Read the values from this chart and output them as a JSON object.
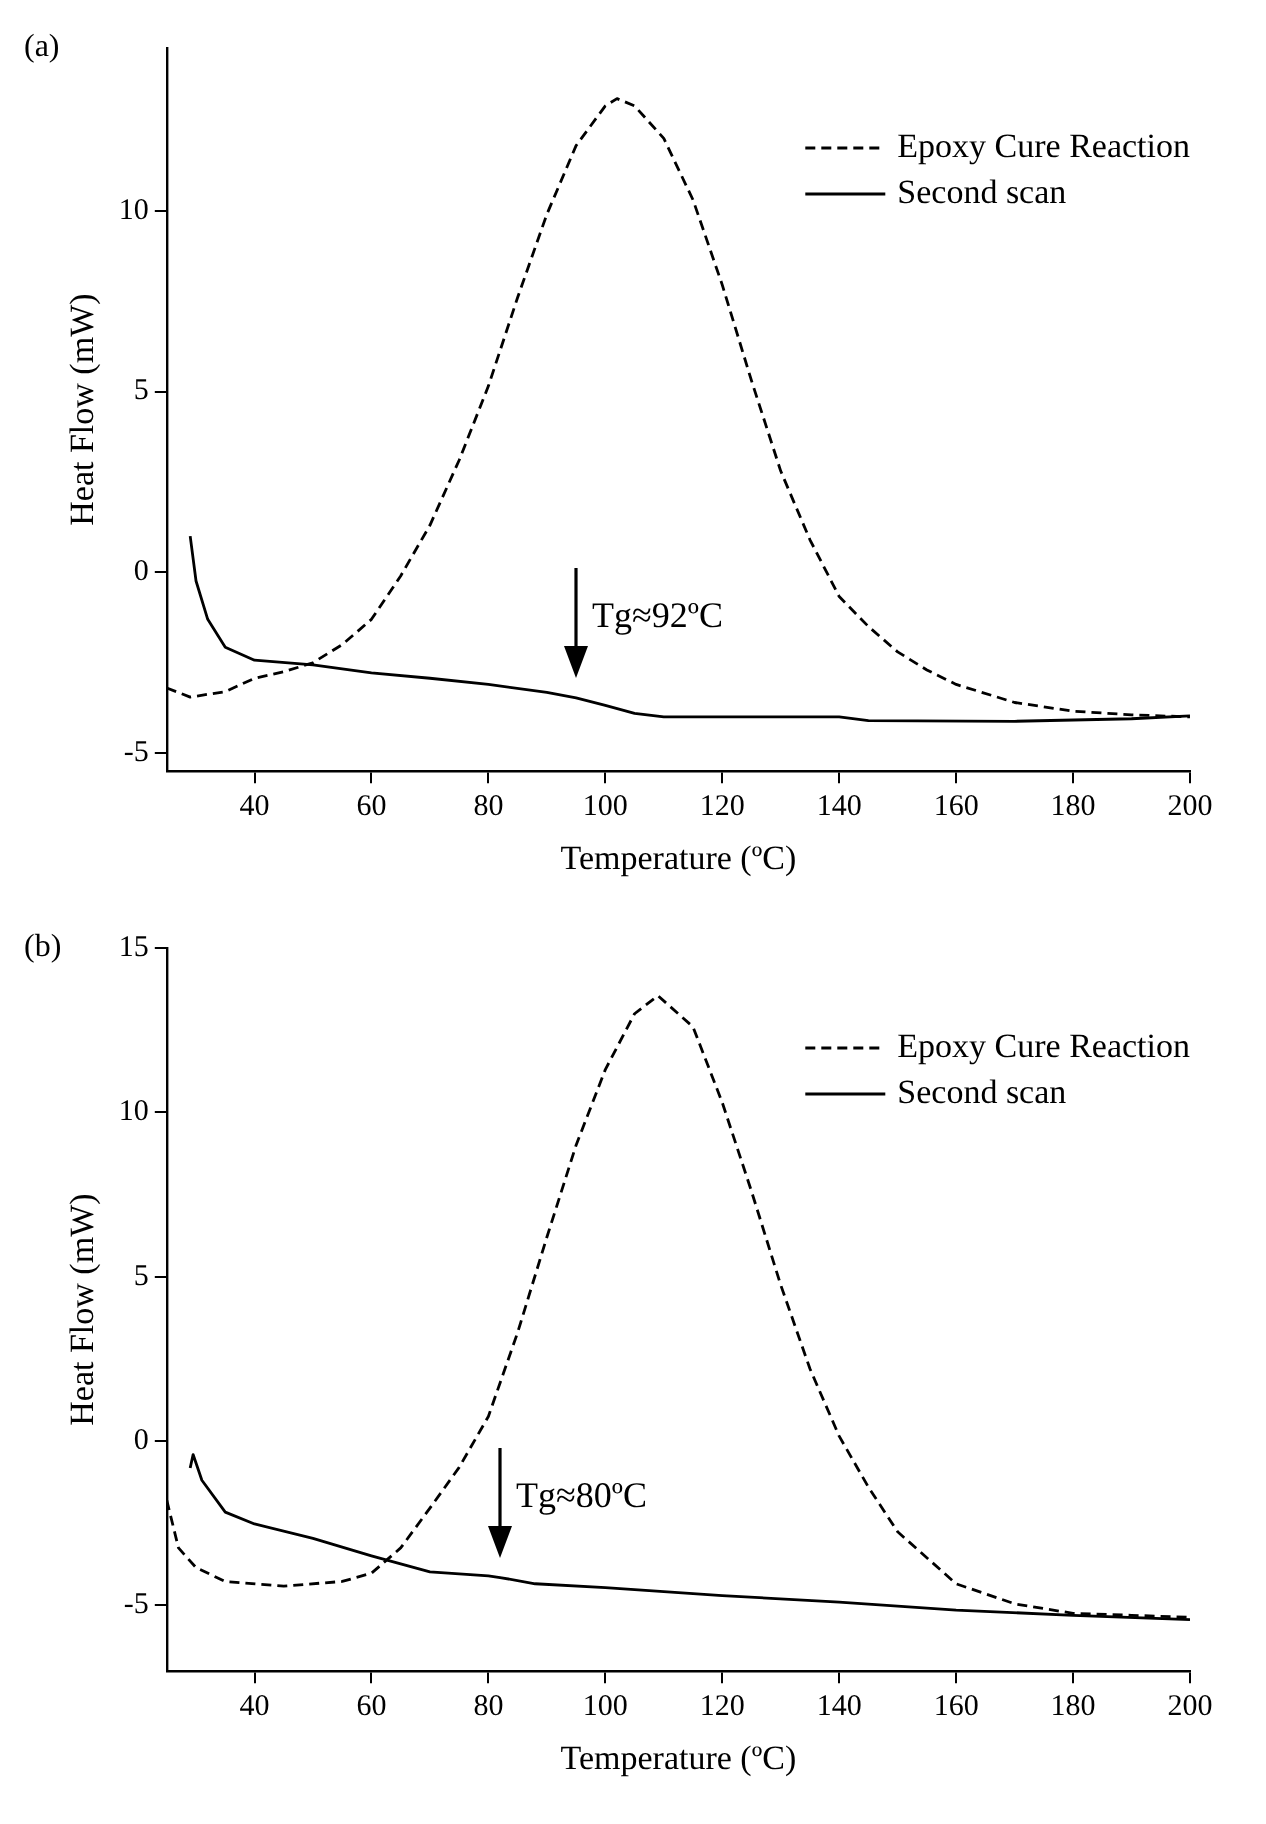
{
  "chart_data": [
    {
      "type": "line",
      "title": "(a)",
      "xlabel": "Temperature (ºC)",
      "ylabel": "Heat Flow (mW)",
      "xlim": [
        25,
        200
      ],
      "xticks": [
        40,
        60,
        80,
        100,
        120,
        140,
        160,
        180,
        200
      ],
      "ylim": [
        -5.5,
        14.5
      ],
      "yticks": [
        -5,
        0,
        5,
        10
      ],
      "grid": false,
      "legend": "top right",
      "marker": "none",
      "series": [
        {
          "name": "Epoxy Cure Reaction",
          "color": "#000000",
          "line_style": "dashed",
          "x": [
            25,
            29,
            35,
            40,
            45,
            50,
            55,
            60,
            65,
            70,
            75,
            80,
            85,
            90,
            95,
            100,
            102,
            105,
            110,
            115,
            120,
            125,
            130,
            135,
            140,
            145,
            150,
            155,
            160,
            170,
            180,
            190,
            200
          ],
          "values": [
            -3.2,
            -3.45,
            -3.3,
            -2.93,
            -2.75,
            -2.5,
            -2.0,
            -1.3,
            -0.1,
            1.3,
            3.1,
            5.15,
            7.6,
            9.9,
            11.8,
            12.9,
            13.1,
            12.9,
            12.0,
            10.3,
            7.95,
            5.3,
            2.8,
            0.9,
            -0.67,
            -1.5,
            -2.2,
            -2.7,
            -3.1,
            -3.6,
            -3.84,
            -3.94,
            -4.0
          ]
        },
        {
          "name": "Second scan",
          "color": "#000000",
          "line_style": "solid",
          "x": [
            29,
            30,
            32,
            35,
            40,
            50,
            60,
            70,
            80,
            90,
            95,
            100,
            105,
            110,
            140,
            145,
            170,
            190,
            200
          ],
          "values": [
            1.0,
            -0.24,
            -1.3,
            -2.07,
            -2.43,
            -2.56,
            -2.78,
            -2.93,
            -3.1,
            -3.32,
            -3.47,
            -3.68,
            -3.9,
            -4.0,
            -4.0,
            -4.1,
            -4.12,
            -4.05,
            -3.97
          ]
        }
      ],
      "annotations": [
        {
          "text": "Tg≈92ºC",
          "x": 95,
          "y": -3.47
        }
      ]
    },
    {
      "type": "line",
      "title": "(b)",
      "xlabel": "Temperature (ºC)",
      "ylabel": "Heat Flow (mW)",
      "xlim": [
        25,
        200
      ],
      "xticks": [
        40,
        60,
        80,
        100,
        120,
        140,
        160,
        180,
        200
      ],
      "ylim": [
        -7,
        15
      ],
      "yticks": [
        -5,
        0,
        5,
        10,
        15
      ],
      "grid": false,
      "legend": "top right",
      "marker": "none",
      "series": [
        {
          "name": "Epoxy Cure Reaction",
          "color": "#000000",
          "line_style": "dashed",
          "x": [
            25,
            27,
            30,
            35,
            45,
            55,
            60,
            65,
            70,
            75,
            80,
            85,
            90,
            95,
            100,
            105,
            109,
            115,
            120,
            125,
            130,
            135,
            140,
            145,
            150,
            160,
            170,
            180,
            190,
            200
          ],
          "values": [
            -1.8,
            -3.25,
            -3.85,
            -4.27,
            -4.41,
            -4.27,
            -4.02,
            -3.25,
            -2.04,
            -0.8,
            0.75,
            3.3,
            6.2,
            9.0,
            11.3,
            13.0,
            13.55,
            12.6,
            10.3,
            7.6,
            4.75,
            2.2,
            0.15,
            -1.4,
            -2.76,
            -4.34,
            -4.95,
            -5.24,
            -5.3,
            -5.36
          ]
        },
        {
          "name": "Second scan",
          "color": "#000000",
          "line_style": "solid",
          "x": [
            29,
            29.5,
            31,
            35,
            40,
            50,
            60,
            70,
            80,
            82,
            88,
            100,
            120,
            140,
            160,
            180,
            200
          ],
          "values": [
            -0.82,
            -0.41,
            -1.19,
            -2.16,
            -2.52,
            -2.96,
            -3.49,
            -3.98,
            -4.1,
            -4.15,
            -4.34,
            -4.46,
            -4.7,
            -4.9,
            -5.14,
            -5.3,
            -5.43
          ]
        }
      ],
      "annotations": [
        {
          "text": "Tg≈80ºC",
          "x": 82,
          "y": -4.15
        }
      ]
    }
  ]
}
